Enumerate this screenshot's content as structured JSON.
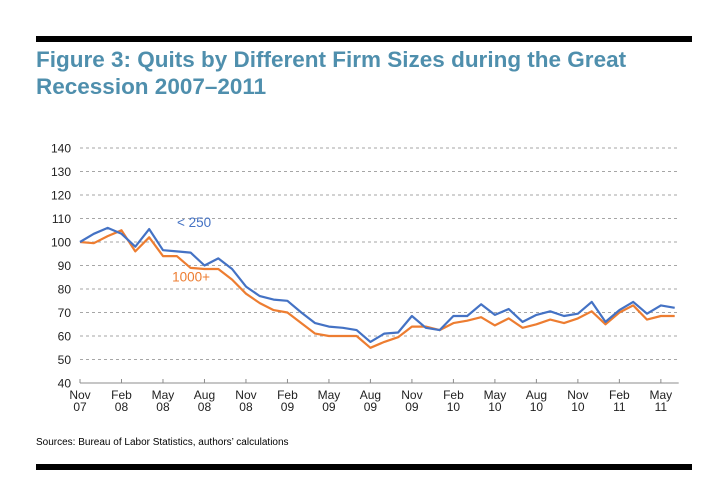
{
  "figure": {
    "title_line1": "Figure 3: Quits by Different Firm Sizes during the Great",
    "title_line2": "Recession 2007–2011",
    "source": "Sources: Bureau of Labor Statistics, authors’ calculations"
  },
  "colors": {
    "title": "#4f8fad",
    "series_small": "#4472c4",
    "series_large": "#ed7d31",
    "grid": "#a6a6a6",
    "axis": "#8c8c8c"
  },
  "chart_data": {
    "type": "line",
    "title": "Figure 3: Quits by Different Firm Sizes during the Great Recession 2007–2011",
    "xlabel": "",
    "ylabel": "",
    "ylim": [
      40,
      140
    ],
    "yticks": [
      40,
      50,
      60,
      70,
      80,
      90,
      100,
      110,
      120,
      130,
      140
    ],
    "grid": true,
    "grid_style": "horizontal dashed",
    "legend": "inline labels near lines (upper-left)",
    "x": [
      "Nov 07",
      "Dec 07",
      "Jan 08",
      "Feb 08",
      "Mar 08",
      "Apr 08",
      "May 08",
      "Jun 08",
      "Jul 08",
      "Aug 08",
      "Sep 08",
      "Oct 08",
      "Nov 08",
      "Dec 08",
      "Jan 09",
      "Feb 09",
      "Mar 09",
      "Apr 09",
      "May 09",
      "Jun 09",
      "Jul 09",
      "Aug 09",
      "Sep 09",
      "Oct 09",
      "Nov 09",
      "Dec 09",
      "Jan 10",
      "Feb 10",
      "Mar 10",
      "Apr 10",
      "May 10",
      "Jun 10",
      "Jul 10",
      "Aug 10",
      "Sep 10",
      "Oct 10",
      "Nov 10",
      "Dec 10",
      "Jan 11",
      "Feb 11",
      "Mar 11",
      "Apr 11",
      "May 11",
      "Jun 11"
    ],
    "xtick_labels": [
      {
        "index": 0,
        "line1": "Nov",
        "line2": "07"
      },
      {
        "index": 3,
        "line1": "Feb",
        "line2": "08"
      },
      {
        "index": 6,
        "line1": "May",
        "line2": "08"
      },
      {
        "index": 9,
        "line1": "Aug",
        "line2": "08"
      },
      {
        "index": 12,
        "line1": "Nov",
        "line2": "08"
      },
      {
        "index": 15,
        "line1": "Feb",
        "line2": "09"
      },
      {
        "index": 18,
        "line1": "May",
        "line2": "09"
      },
      {
        "index": 21,
        "line1": "Aug",
        "line2": "09"
      },
      {
        "index": 24,
        "line1": "Nov",
        "line2": "09"
      },
      {
        "index": 27,
        "line1": "Feb",
        "line2": "10"
      },
      {
        "index": 30,
        "line1": "May",
        "line2": "10"
      },
      {
        "index": 33,
        "line1": "Aug",
        "line2": "10"
      },
      {
        "index": 36,
        "line1": "Nov",
        "line2": "10"
      },
      {
        "index": 39,
        "line1": "Feb",
        "line2": "11"
      },
      {
        "index": 42,
        "line1": "May",
        "line2": "11"
      }
    ],
    "series": [
      {
        "name": "< 250",
        "label_at_index": 6,
        "label_value": 108,
        "values": [
          100,
          103.5,
          106,
          103.5,
          98,
          105.5,
          96.5,
          96,
          95.5,
          90,
          93,
          88.5,
          81,
          77,
          75.5,
          75,
          70,
          65.5,
          64,
          63.5,
          62.5,
          57.5,
          61,
          61.5,
          68.5,
          63.5,
          62.5,
          68.5,
          68.5,
          73.5,
          69,
          71.5,
          66,
          69,
          70.5,
          68.5,
          69.5,
          74.5,
          66,
          71,
          74.5,
          69.5,
          73,
          72
        ]
      },
      {
        "name": "1000+",
        "label_at_index": 5.5,
        "label_value": 85,
        "values": [
          100,
          99.5,
          102.5,
          105,
          96,
          102,
          94,
          94,
          89,
          88.5,
          88.5,
          84,
          78,
          74,
          71,
          70,
          65.5,
          61,
          60,
          60,
          60,
          55,
          57.5,
          59.5,
          64,
          64,
          62.5,
          65.5,
          66.5,
          68,
          64.5,
          67.5,
          63.5,
          65,
          67,
          65.5,
          67.5,
          70.5,
          65,
          70,
          73,
          67,
          68.5,
          68.5
        ]
      }
    ]
  }
}
